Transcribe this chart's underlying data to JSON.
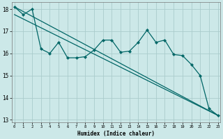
{
  "xlabel": "Humidex (Indice chaleur)",
  "x": [
    0,
    1,
    2,
    3,
    4,
    5,
    6,
    7,
    8,
    9,
    10,
    11,
    12,
    13,
    14,
    15,
    16,
    17,
    18,
    19,
    20,
    21,
    22,
    23
  ],
  "line1": [
    18.1,
    17.75,
    18.0,
    16.2,
    16.0,
    16.5,
    15.8,
    15.8,
    15.85,
    16.15,
    16.6,
    16.6,
    16.05,
    16.1,
    16.5,
    17.05,
    16.5,
    16.6,
    15.95,
    15.9,
    15.5,
    15.0,
    13.5,
    13.2
  ],
  "trend1_x": [
    0,
    23
  ],
  "trend1_y": [
    18.1,
    13.2
  ],
  "trend2_x": [
    0,
    23
  ],
  "trend2_y": [
    17.75,
    13.2
  ],
  "bg_color": "#cce8e8",
  "grid_color": "#aacccc",
  "line_color": "#006666",
  "ylim": [
    12.9,
    18.3
  ],
  "xlim": [
    -0.3,
    23.3
  ],
  "yticks": [
    13,
    14,
    15,
    16,
    17,
    18
  ],
  "xticks": [
    0,
    1,
    2,
    3,
    4,
    5,
    6,
    7,
    8,
    9,
    10,
    11,
    12,
    13,
    14,
    15,
    16,
    17,
    18,
    19,
    20,
    21,
    22,
    23
  ]
}
